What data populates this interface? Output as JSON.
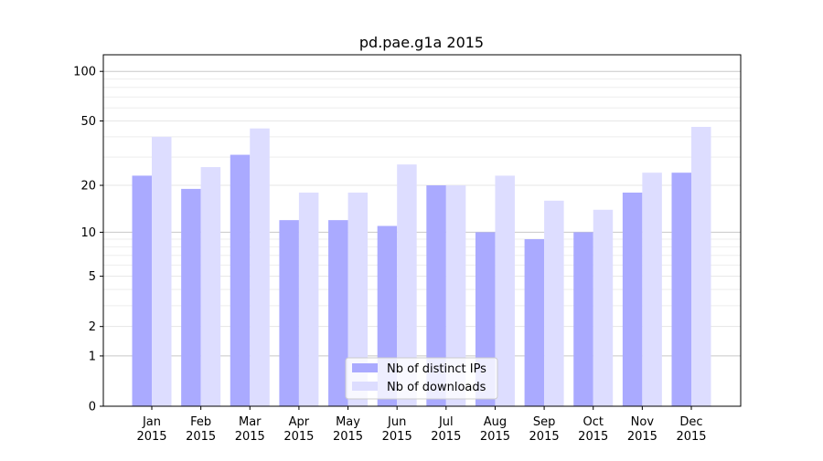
{
  "chart_data": {
    "type": "bar",
    "title": "pd.pae.g1a 2015",
    "xlabel": "",
    "ylabel": "",
    "yscale": "log(y+1)",
    "ylim": [
      0,
      126
    ],
    "yticks": [
      0,
      1,
      2,
      5,
      10,
      20,
      50,
      100
    ],
    "ytick_labels": [
      "0",
      "1",
      "2",
      "5",
      "10",
      "20",
      "50",
      "100"
    ],
    "grid": true,
    "legend_position": "lower center",
    "categories": [
      [
        "Jan",
        "2015"
      ],
      [
        "Feb",
        "2015"
      ],
      [
        "Mar",
        "2015"
      ],
      [
        "Apr",
        "2015"
      ],
      [
        "May",
        "2015"
      ],
      [
        "Jun",
        "2015"
      ],
      [
        "Jul",
        "2015"
      ],
      [
        "Aug",
        "2015"
      ],
      [
        "Sep",
        "2015"
      ],
      [
        "Oct",
        "2015"
      ],
      [
        "Nov",
        "2015"
      ],
      [
        "Dec",
        "2015"
      ]
    ],
    "series": [
      {
        "name": "Nb of distinct IPs",
        "color": "#aaaaff",
        "values": [
          23,
          19,
          31,
          12,
          12,
          11,
          20,
          10,
          9,
          10,
          18,
          24
        ]
      },
      {
        "name": "Nb of downloads",
        "color": "#ddddff",
        "values": [
          40,
          26,
          45,
          18,
          18,
          27,
          20,
          23,
          16,
          14,
          24,
          46
        ]
      }
    ]
  }
}
